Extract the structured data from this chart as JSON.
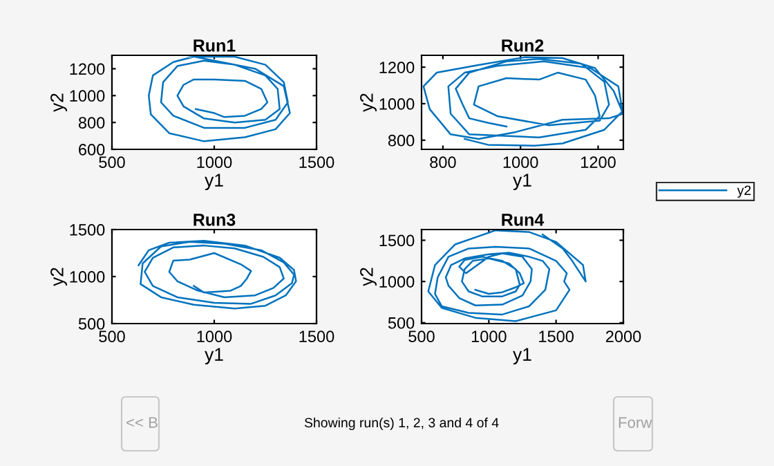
{
  "chart_data": [
    {
      "type": "line",
      "title": "Run1",
      "xlabel": "y1",
      "ylabel": "y2",
      "xlim": [
        500,
        1500
      ],
      "ylim": [
        600,
        1300
      ],
      "xticks": [
        500,
        1000,
        1500
      ],
      "yticks": [
        600,
        800,
        1000,
        1200
      ],
      "legend": false,
      "series": [
        {
          "color": "#0072bd",
          "x": [
            910,
            1000,
            1050,
            1150,
            1230,
            1260,
            1230,
            1150,
            1000,
            900,
            850,
            820,
            850,
            950,
            1100,
            1250,
            1320,
            1310,
            1250,
            1100,
            950,
            820,
            750,
            740,
            800,
            950,
            1150,
            1300,
            1360,
            1340,
            1250,
            1100,
            900,
            800,
            700,
            680,
            690,
            780,
            950,
            1150,
            1300,
            1370,
            1340,
            1200,
            1000,
            870
          ],
          "values": [
            900,
            870,
            840,
            850,
            900,
            950,
            1050,
            1110,
            1120,
            1120,
            1080,
            1000,
            920,
            830,
            800,
            820,
            900,
            1050,
            1150,
            1230,
            1260,
            1220,
            1100,
            950,
            850,
            760,
            760,
            820,
            950,
            1100,
            1230,
            1290,
            1290,
            1250,
            1150,
            1000,
            860,
            720,
            660,
            690,
            750,
            870,
            1070,
            1200,
            1260,
            1300
          ]
        }
      ]
    },
    {
      "type": "line",
      "title": "Run2",
      "xlabel": "y1",
      "ylabel": "y2",
      "xlim": [
        745,
        1265
      ],
      "ylim": [
        750,
        1265
      ],
      "xticks": [
        800,
        1000,
        1200
      ],
      "yticks": [
        800,
        1000,
        1200
      ],
      "legend": "right",
      "series": [
        {
          "name": "y2",
          "color": "#0072bd",
          "x": [
            964,
            917,
            868,
            851,
            833,
            868,
            964,
            1048,
            1156,
            1216,
            1228,
            1204,
            1072,
            940,
            880,
            892,
            964,
            1048,
            1096,
            1168,
            1192,
            1204,
            1168,
            1048,
            868,
            820,
            814,
            856,
            940,
            1060,
            1180,
            1252,
            1264,
            1228,
            1108,
            988,
            892,
            820,
            766,
            750,
            784,
            892,
            1012,
            1108,
            1192,
            1240,
            1262,
            1216,
            1108,
            1036,
            916,
            856
          ],
          "values": [
            875,
            895,
            920,
            995,
            1082,
            1170,
            1232,
            1245,
            1220,
            1120,
            995,
            907,
            882,
            932,
            995,
            1095,
            1140,
            1132,
            1170,
            1132,
            1045,
            932,
            857,
            815,
            832,
            945,
            1095,
            1170,
            1207,
            1232,
            1195,
            1095,
            945,
            920,
            912,
            845,
            807,
            832,
            970,
            1095,
            1170,
            1212,
            1255,
            1250,
            1195,
            1070,
            957,
            857,
            782,
            770,
            775,
            807
          ]
        }
      ]
    },
    {
      "type": "line",
      "title": "Run3",
      "xlabel": "y1",
      "ylabel": "y2",
      "xlim": [
        500,
        1500
      ],
      "ylim": [
        500,
        1500
      ],
      "xticks": [
        500,
        1000,
        1500
      ],
      "yticks": [
        500,
        1000,
        1500
      ],
      "legend": false,
      "series": [
        {
          "color": "#0072bd",
          "x": [
            900,
            950,
            1020,
            1080,
            1130,
            1160,
            1180,
            1130,
            1000,
            880,
            800,
            780,
            820,
            920,
            1050,
            1200,
            1290,
            1340,
            1320,
            1240,
            1100,
            950,
            800,
            700,
            660,
            700,
            820,
            1000,
            1180,
            1300,
            1380,
            1390,
            1340,
            1230,
            1050,
            880,
            740,
            650,
            640,
            740,
            900,
            1100,
            1250,
            1350,
            1400,
            1390,
            1320,
            1150,
            950,
            780,
            680,
            630
          ],
          "values": [
            900,
            830,
            840,
            850,
            900,
            980,
            1060,
            1130,
            1250,
            1180,
            1170,
            1050,
            950,
            850,
            780,
            800,
            880,
            980,
            1100,
            1210,
            1300,
            1330,
            1310,
            1200,
            1050,
            900,
            780,
            720,
            710,
            800,
            930,
            1020,
            1150,
            1280,
            1350,
            1370,
            1320,
            1140,
            920,
            780,
            700,
            660,
            690,
            800,
            950,
            1070,
            1200,
            1330,
            1380,
            1360,
            1280,
            1120
          ]
        }
      ]
    },
    {
      "type": "line",
      "title": "Run4",
      "xlabel": "y1",
      "ylabel": "y2",
      "xlim": [
        500,
        2000
      ],
      "ylim": [
        490,
        1630
      ],
      "xticks": [
        500,
        1000,
        1500,
        2000
      ],
      "yticks": [
        500,
        1000,
        1500
      ],
      "legend": false,
      "series": [
        {
          "color": "#0072bd",
          "x": [
            900,
            1000,
            1100,
            1200,
            1260,
            1230,
            1150,
            1000,
            880,
            820,
            800,
            850,
            950,
            1100,
            1200,
            1230,
            1200,
            1100,
            950,
            820,
            780,
            830,
            1000,
            1100,
            1250,
            1320,
            1310,
            1250,
            1100,
            900,
            780,
            700,
            680,
            720,
            820,
            1000,
            1150,
            1300,
            1400,
            1450,
            1420,
            1300,
            1100,
            850,
            650,
            600,
            620,
            700,
            850,
            1050,
            1300,
            1500,
            1580,
            1560,
            1600,
            1500,
            1200,
            900,
            650,
            550,
            600,
            750,
            1050,
            1300,
            1500,
            1700,
            1720,
            1620,
            1550,
            1400
          ],
          "values": [
            900,
            850,
            870,
            930,
            980,
            1100,
            1220,
            1280,
            1250,
            1150,
            1000,
            880,
            820,
            820,
            880,
            960,
            1150,
            1250,
            1300,
            1260,
            1180,
            1100,
            1300,
            1340,
            1300,
            1150,
            1000,
            830,
            720,
            710,
            800,
            950,
            1050,
            1200,
            1280,
            1330,
            1350,
            1300,
            1250,
            1150,
            900,
            700,
            600,
            620,
            700,
            850,
            1050,
            1300,
            1400,
            1420,
            1400,
            1250,
            1100,
            1000,
            900,
            650,
            520,
            560,
            680,
            880,
            1200,
            1450,
            1620,
            1600,
            1480,
            1200,
            1000,
            1250,
            1400,
            1570
          ]
        }
      ]
    },
    {
      "type": "other",
      "annotations": [
        "<< B",
        "Showing run(s) 1, 2, 3 and 4 of 4",
        "Forw"
      ]
    }
  ]
}
